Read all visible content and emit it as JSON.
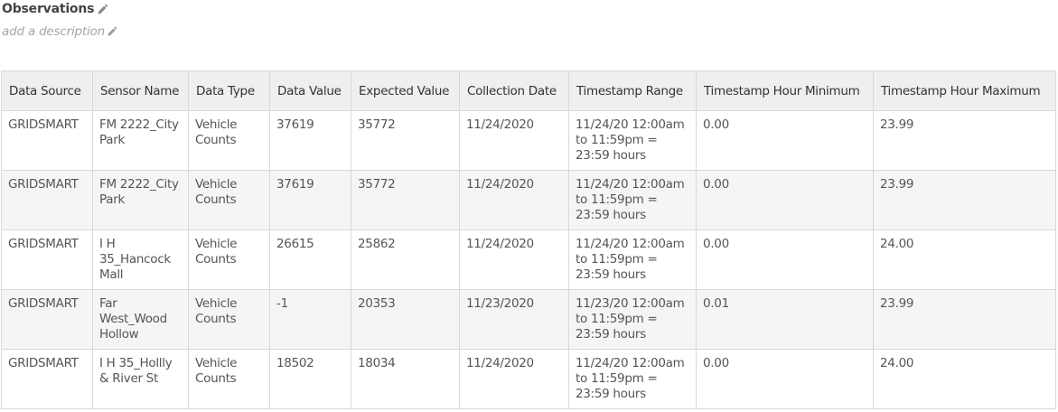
{
  "header": {
    "title": "Observations",
    "description_placeholder": "add a description"
  },
  "table": {
    "columns": [
      "Data Source",
      "Sensor Name",
      "Data Type",
      "Data Value",
      "Expected Value",
      "Collection Date",
      "Timestamp Range",
      "Timestamp Hour Minimum",
      "Timestamp Hour Maximum"
    ],
    "rows": [
      [
        "GRIDSMART",
        "FM 2222_City Park",
        "Vehicle Counts",
        "37619",
        "35772",
        "11/24/2020",
        "11/24/20 12:00am to 11:59pm = 23:59 hours",
        "0.00",
        "23.99"
      ],
      [
        "GRIDSMART",
        "FM 2222_City Park",
        "Vehicle Counts",
        "37619",
        "35772",
        "11/24/2020",
        "11/24/20 12:00am to 11:59pm = 23:59 hours",
        "0.00",
        "23.99"
      ],
      [
        "GRIDSMART",
        "I H 35_Hancock Mall",
        "Vehicle Counts",
        "26615",
        "25862",
        "11/24/2020",
        "11/24/20 12:00am to 11:59pm = 23:59 hours",
        "0.00",
        "24.00"
      ],
      [
        "GRIDSMART",
        "Far West_Wood Hollow",
        "Vehicle Counts",
        "-1",
        "20353",
        "11/23/2020",
        "11/23/20 12:00am to 11:59pm = 23:59 hours",
        "0.01",
        "23.99"
      ],
      [
        "GRIDSMART",
        "I H 35_Hollly & River St",
        "Vehicle Counts",
        "18502",
        "18034",
        "11/24/2020",
        "11/24/20 12:00am to 11:59pm = 23:59 hours",
        "0.00",
        "24.00"
      ]
    ]
  }
}
